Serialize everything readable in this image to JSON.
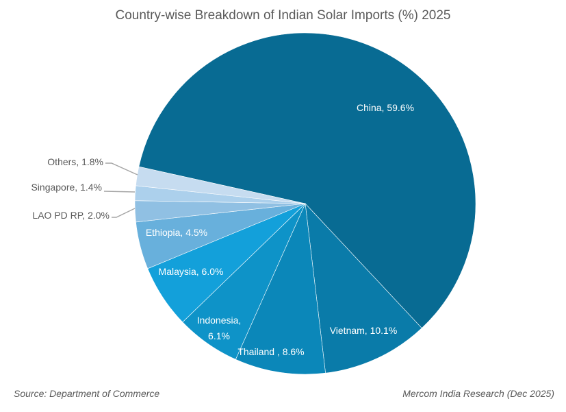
{
  "chart_data": {
    "type": "pie",
    "title": "Country-wise Breakdown of Indian Solar Imports (%) 2025",
    "slices": [
      {
        "label": "China",
        "value": 59.6,
        "text": "China, 59.6%",
        "color": "#086b93"
      },
      {
        "label": "Vietnam",
        "value": 10.1,
        "text": "Vietnam, 10.1%",
        "color": "#0a7ba9"
      },
      {
        "label": "Thailand",
        "value": 8.6,
        "text": "Thailand , 8.6%",
        "color": "#0b87b9"
      },
      {
        "label": "Indonesia",
        "value": 6.1,
        "text_lines": [
          "Indonesia,",
          "6.1%"
        ],
        "color": "#0e93c8"
      },
      {
        "label": "Malaysia",
        "value": 6.0,
        "text": "Malaysia, 6.0%",
        "color": "#13a0da"
      },
      {
        "label": "Ethiopia",
        "value": 4.5,
        "text": "Ethiopia, 4.5%",
        "color": "#68b0dc"
      },
      {
        "label": "LAO PD RP",
        "value": 2.0,
        "text": "LAO PD RP, 2.0%",
        "color": "#90c0e3"
      },
      {
        "label": "Singapore",
        "value": 1.4,
        "text": "Singapore, 1.4%",
        "color": "#acd0ec"
      },
      {
        "label": "Others",
        "value": 1.8,
        "text": "Others, 1.8%",
        "color": "#c6dcf0"
      }
    ]
  },
  "footer": {
    "source_prefix": "Source:",
    "source": "Department of Commerce",
    "credit": "Mercom India Research (Dec 2025)"
  }
}
